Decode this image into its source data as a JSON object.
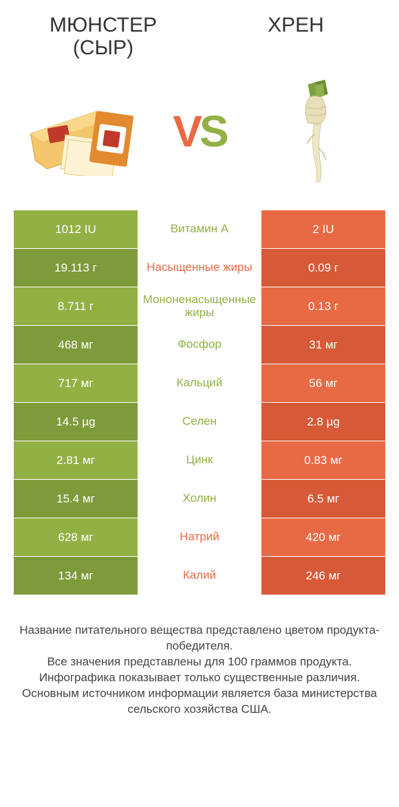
{
  "colors": {
    "green": "#93b044",
    "green_dark": "#7f9a3a",
    "orange": "#e86a44",
    "orange_dark": "#d65a37",
    "white": "#ffffff",
    "text": "#333333"
  },
  "header": {
    "left_title": "МЮНСТЕР (СЫР)",
    "right_title": "ХРЕН"
  },
  "vs": {
    "v": "V",
    "s": "S"
  },
  "rows": [
    {
      "left": "1012 IU",
      "mid": "Витамин A",
      "mid_color": "green",
      "right": "2 IU"
    },
    {
      "left": "19.113 г",
      "mid": "Насыщенные жиры",
      "mid_color": "orange",
      "right": "0.09 г"
    },
    {
      "left": "8.711 г",
      "mid": "Мононенасыщенные жиры",
      "mid_color": "green",
      "right": "0.13 г"
    },
    {
      "left": "468 мг",
      "mid": "Фосфор",
      "mid_color": "green",
      "right": "31 мг"
    },
    {
      "left": "717 мг",
      "mid": "Кальций",
      "mid_color": "green",
      "right": "56 мг"
    },
    {
      "left": "14.5 µg",
      "mid": "Селен",
      "mid_color": "green",
      "right": "2.8 µg"
    },
    {
      "left": "2.81 мг",
      "mid": "Цинк",
      "mid_color": "green",
      "right": "0.83 мг"
    },
    {
      "left": "15.4 мг",
      "mid": "Холин",
      "mid_color": "green",
      "right": "6.5 мг"
    },
    {
      "left": "628 мг",
      "mid": "Натрий",
      "mid_color": "orange",
      "right": "420 мг"
    },
    {
      "left": "134 мг",
      "mid": "Калий",
      "mid_color": "orange",
      "right": "246 мг"
    }
  ],
  "footer": {
    "line1": "Название питательного вещества представлено цветом продукта-победителя.",
    "line2": "Все значения представлены для 100 граммов продукта.",
    "line3": "Инфографика показывает только существенные различия.",
    "line4": "Основным источником информации является база министерства сельского хозяйства США."
  }
}
